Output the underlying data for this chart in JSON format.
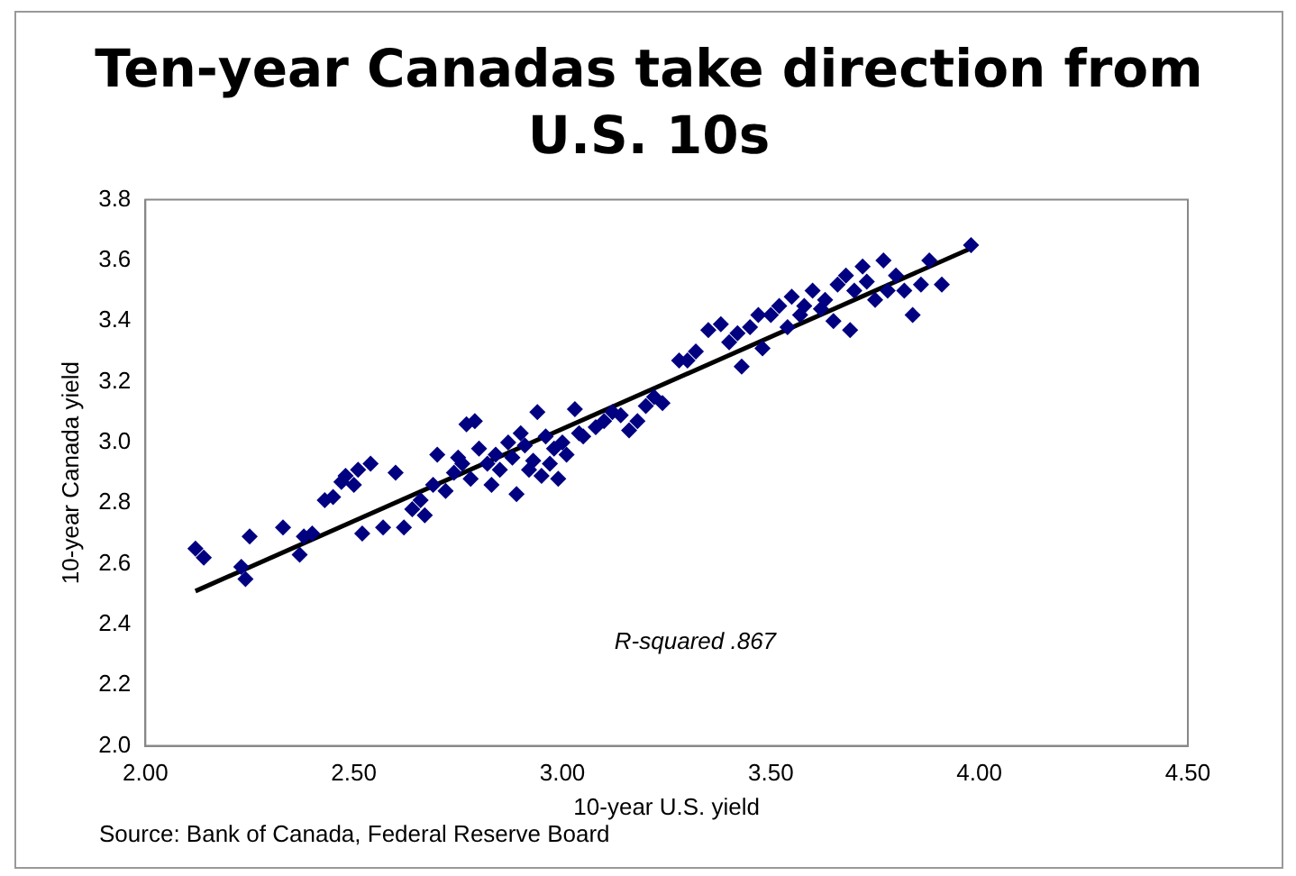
{
  "chart_data": {
    "type": "scatter",
    "title": "Ten-year Canadas take direction from U.S. 10s",
    "xlabel": "10-year U.S. yield",
    "ylabel": "10-year Canada yield",
    "annotations": [
      "R-squared .867",
      "Source: Bank of Canada, Federal Reserve Board"
    ],
    "x": [
      2.12,
      2.14,
      2.24,
      2.25,
      2.23,
      2.33,
      2.37,
      2.38,
      2.4,
      2.43,
      2.45,
      2.47,
      2.48,
      2.5,
      2.51,
      2.54,
      2.52,
      2.57,
      2.6,
      2.62,
      2.64,
      2.66,
      2.67,
      2.69,
      2.7,
      2.72,
      2.74,
      2.75,
      2.76,
      2.77,
      2.78,
      2.79,
      2.8,
      2.82,
      2.83,
      2.84,
      2.85,
      2.87,
      2.88,
      2.89,
      2.9,
      2.91,
      2.92,
      2.93,
      2.94,
      2.95,
      2.96,
      2.97,
      2.98,
      2.99,
      3.0,
      3.01,
      3.03,
      3.04,
      3.05,
      3.08,
      3.1,
      3.12,
      3.14,
      3.16,
      3.18,
      3.2,
      3.22,
      3.24,
      3.28,
      3.3,
      3.32,
      3.35,
      3.38,
      3.4,
      3.42,
      3.43,
      3.45,
      3.47,
      3.48,
      3.5,
      3.52,
      3.54,
      3.55,
      3.57,
      3.58,
      3.6,
      3.62,
      3.63,
      3.65,
      3.66,
      3.68,
      3.69,
      3.7,
      3.72,
      3.73,
      3.75,
      3.77,
      3.78,
      3.8,
      3.82,
      3.84,
      3.86,
      3.88,
      3.91,
      3.98
    ],
    "series": [
      {
        "color": "#000080",
        "marker": "diamond",
        "values": [
          2.65,
          2.62,
          2.55,
          2.69,
          2.59,
          2.72,
          2.63,
          2.69,
          2.7,
          2.81,
          2.82,
          2.87,
          2.89,
          2.86,
          2.91,
          2.93,
          2.7,
          2.72,
          2.9,
          2.72,
          2.78,
          2.81,
          2.76,
          2.86,
          2.96,
          2.84,
          2.9,
          2.95,
          2.93,
          3.06,
          2.88,
          3.07,
          2.98,
          2.93,
          2.86,
          2.96,
          2.91,
          3.0,
          2.95,
          2.83,
          3.03,
          2.99,
          2.91,
          2.94,
          3.1,
          2.89,
          3.02,
          2.93,
          2.98,
          2.88,
          3.0,
          2.96,
          3.11,
          3.03,
          3.02,
          3.05,
          3.07,
          3.1,
          3.09,
          3.04,
          3.07,
          3.12,
          3.15,
          3.13,
          3.27,
          3.27,
          3.3,
          3.37,
          3.39,
          3.33,
          3.36,
          3.25,
          3.38,
          3.42,
          3.31,
          3.42,
          3.45,
          3.38,
          3.48,
          3.42,
          3.45,
          3.5,
          3.44,
          3.47,
          3.4,
          3.52,
          3.55,
          3.37,
          3.5,
          3.58,
          3.53,
          3.47,
          3.6,
          3.5,
          3.55,
          3.5,
          3.42,
          3.52,
          3.6,
          3.52,
          3.65
        ]
      },
      {
        "type": "line",
        "color": "#000000",
        "marker": "none",
        "line_style": "solid",
        "x": [
          2.12,
          3.98
        ],
        "values": [
          2.51,
          3.64
        ]
      }
    ],
    "xlim": [
      2.0,
      4.5
    ],
    "xticks": [
      {
        "value": 2.0,
        "label": "2.00"
      },
      {
        "value": 2.5,
        "label": "2.50"
      },
      {
        "value": 3.0,
        "label": "3.00"
      },
      {
        "value": 3.5,
        "label": "3.50"
      },
      {
        "value": 4.0,
        "label": "4.00"
      },
      {
        "value": 4.5,
        "label": "4.50"
      }
    ],
    "ylim": [
      2.0,
      3.8
    ],
    "yticks": [
      {
        "value": 2.0,
        "label": "2.0"
      },
      {
        "value": 2.2,
        "label": "2.2"
      },
      {
        "value": 2.4,
        "label": "2.4"
      },
      {
        "value": 2.6,
        "label": "2.6"
      },
      {
        "value": 2.8,
        "label": "2.8"
      },
      {
        "value": 3.0,
        "label": "3.0"
      },
      {
        "value": 3.2,
        "label": "3.2"
      },
      {
        "value": 3.4,
        "label": "3.4"
      },
      {
        "value": 3.6,
        "label": "3.6"
      },
      {
        "value": 3.8,
        "label": "3.8"
      }
    ],
    "grid": false,
    "legend": false
  }
}
